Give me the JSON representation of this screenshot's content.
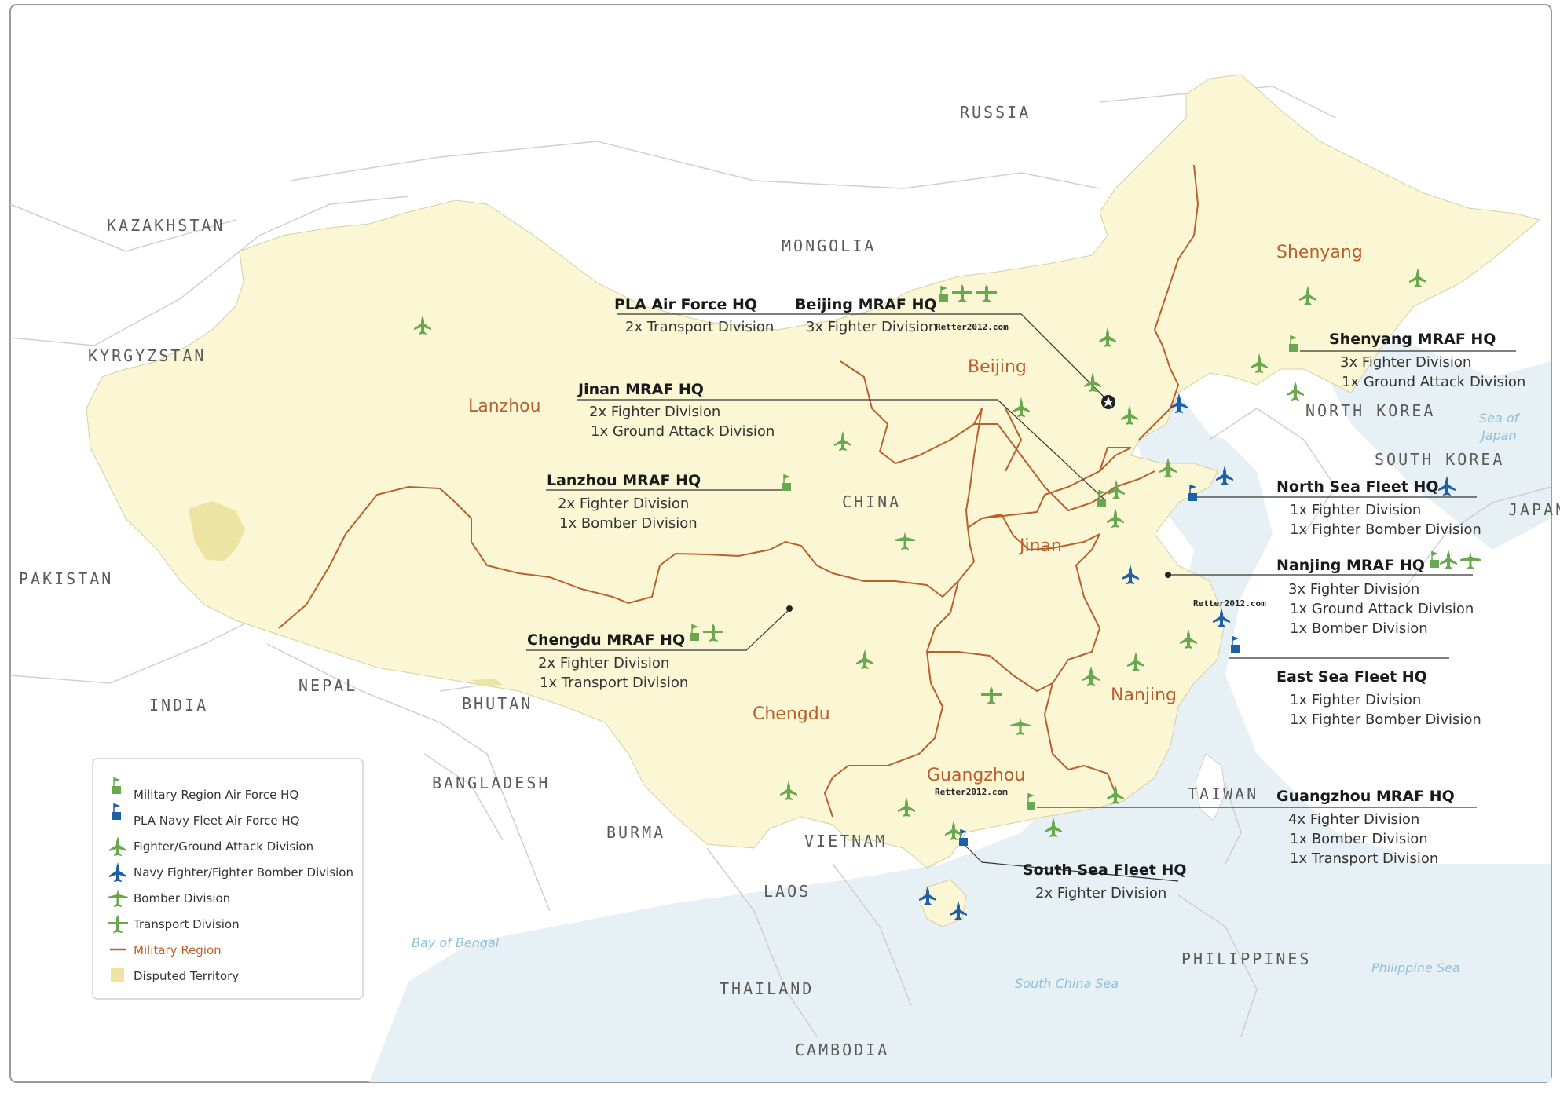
{
  "colors": {
    "china_fill": "#fbf6d4",
    "disputed_fill": "#ede3a2",
    "water": "#e6f0f5",
    "region_border": "#b8612d",
    "air_force_green": "#6aa84f",
    "navy_blue": "#1f5fa6",
    "neighbor_border": "#c8c8c8"
  },
  "countries": [
    {
      "id": "russia",
      "label": "RUSSIA"
    },
    {
      "id": "kazakhstan",
      "label": "KAZAKHSTAN"
    },
    {
      "id": "mongolia",
      "label": "MONGOLIA"
    },
    {
      "id": "kyrgyzstan",
      "label": "KYRGYZSTAN"
    },
    {
      "id": "china",
      "label": "CHINA"
    },
    {
      "id": "pakistan",
      "label": "PAKISTAN"
    },
    {
      "id": "nepal",
      "label": "NEPAL"
    },
    {
      "id": "india",
      "label": "INDIA"
    },
    {
      "id": "bhutan",
      "label": "BHUTAN"
    },
    {
      "id": "bangladesh",
      "label": "BANGLADESH"
    },
    {
      "id": "burma",
      "label": "BURMA"
    },
    {
      "id": "vietnam",
      "label": "VIETNAM"
    },
    {
      "id": "laos",
      "label": "LAOS"
    },
    {
      "id": "thailand",
      "label": "THAILAND"
    },
    {
      "id": "cambodia",
      "label": "CAMBODIA"
    },
    {
      "id": "north_korea",
      "label": "NORTH KOREA"
    },
    {
      "id": "south_korea",
      "label": "SOUTH KOREA"
    },
    {
      "id": "japan",
      "label": "JAPAN"
    },
    {
      "id": "taiwan",
      "label": "TAIWAN"
    },
    {
      "id": "philippines",
      "label": "PHILIPPINES"
    }
  ],
  "seas": [
    {
      "id": "sea_of_japan_1",
      "label": "Sea of"
    },
    {
      "id": "sea_of_japan_2",
      "label": "Japan"
    },
    {
      "id": "bay_of_bengal",
      "label": "Bay of Bengal"
    },
    {
      "id": "south_china_sea",
      "label": "South China Sea"
    },
    {
      "id": "philippine_sea",
      "label": "Philippine Sea"
    }
  ],
  "regions": [
    {
      "id": "shenyang",
      "label": "Shenyang"
    },
    {
      "id": "beijing",
      "label": "Beijing"
    },
    {
      "id": "lanzhou",
      "label": "Lanzhou"
    },
    {
      "id": "jinan",
      "label": "Jinan"
    },
    {
      "id": "nanjing",
      "label": "Nanjing"
    },
    {
      "id": "chengdu",
      "label": "Chengdu"
    },
    {
      "id": "guangzhou",
      "label": "Guangzhou"
    }
  ],
  "headquarters": [
    {
      "id": "pla_af",
      "title": "PLA Air Force HQ",
      "lines": [
        "2x Transport Division"
      ]
    },
    {
      "id": "beijing",
      "title": "Beijing MRAF HQ",
      "lines": [
        "3x Fighter Division"
      ]
    },
    {
      "id": "shenyang",
      "title": "Shenyang MRAF HQ",
      "lines": [
        "3x Fighter Division",
        "1x Ground Attack Division"
      ]
    },
    {
      "id": "jinan",
      "title": "Jinan MRAF HQ",
      "lines": [
        "2x Fighter Division",
        "1x Ground Attack Division"
      ]
    },
    {
      "id": "lanzhou",
      "title": "Lanzhou MRAF HQ",
      "lines": [
        "2x Fighter Division",
        "1x Bomber Division"
      ]
    },
    {
      "id": "north_sea",
      "title": "North Sea Fleet HQ",
      "lines": [
        "1x Fighter Division",
        "1x Fighter Bomber Division"
      ]
    },
    {
      "id": "nanjing",
      "title": "Nanjing MRAF HQ",
      "lines": [
        "3x Fighter Division",
        "1x Ground Attack Division",
        "1x Bomber Division"
      ]
    },
    {
      "id": "chengdu",
      "title": "Chengdu MRAF HQ",
      "lines": [
        "2x Fighter Division",
        "1x Transport Division"
      ]
    },
    {
      "id": "east_sea",
      "title": "East Sea Fleet HQ",
      "lines": [
        "1x Fighter Division",
        "1x Fighter Bomber Division"
      ]
    },
    {
      "id": "guangzhou",
      "title": "Guangzhou MRAF HQ",
      "lines": [
        "4x Fighter Division",
        "1x Bomber Division",
        "1x Transport Division"
      ]
    },
    {
      "id": "south_sea",
      "title": "South Sea Fleet HQ",
      "lines": [
        "2x Fighter Division"
      ]
    }
  ],
  "watermark": "Retter2012.com",
  "legend": [
    {
      "icon": "green-flag-icon",
      "label": "Military Region Air Force HQ"
    },
    {
      "icon": "blue-flag-icon",
      "label": "PLA Navy Fleet Air Force HQ"
    },
    {
      "icon": "fighter-icon",
      "label": "Fighter/Ground Attack Division"
    },
    {
      "icon": "navy-fighter-icon",
      "label": "Navy Fighter/Fighter Bomber Division"
    },
    {
      "icon": "bomber-icon",
      "label": "Bomber Division"
    },
    {
      "icon": "transport-icon",
      "label": "Transport Division"
    },
    {
      "icon": "region-line-icon",
      "label": "Military Region"
    },
    {
      "icon": "disputed-swatch-icon",
      "label": "Disputed Territory"
    }
  ]
}
